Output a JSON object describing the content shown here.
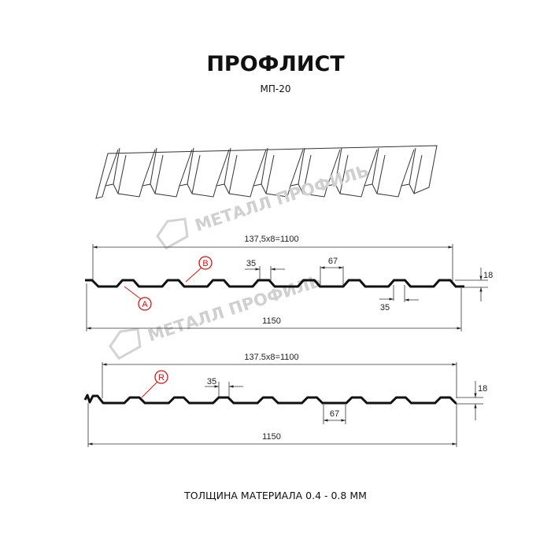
{
  "title": "ПРОФЛИСТ",
  "subtitle": "МП-20",
  "watermark": "МЕТАЛЛ ПРОФИЛЬ",
  "footer": "ТОЛЩИНА МАТЕРИАЛА 0.4 - 0.8 ММ",
  "profile_a": {
    "pitch_label": "137,5x8=1100",
    "width_label": "1150",
    "crest_label": "35",
    "trough_label": "35",
    "valley_label": "67",
    "height_label": "18",
    "marker_a": "A",
    "marker_b": "B"
  },
  "profile_b": {
    "pitch_label": "137.5x8=1100",
    "width_label": "1150",
    "crest_label": "35",
    "valley_label": "67",
    "height_label": "18",
    "marker_r": "R"
  },
  "colors": {
    "line": "#111111",
    "marker": "#e01010",
    "watermark": "#cfcfcf"
  }
}
